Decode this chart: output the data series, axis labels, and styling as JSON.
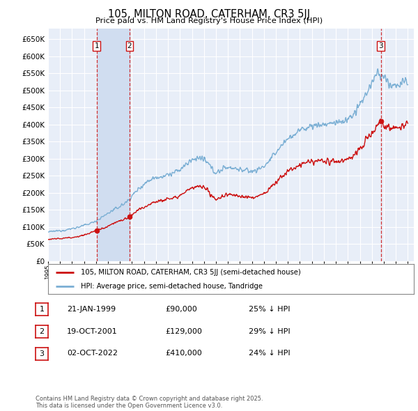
{
  "title": "105, MILTON ROAD, CATERHAM, CR3 5JJ",
  "subtitle": "Price paid vs. HM Land Registry's House Price Index (HPI)",
  "ylim": [
    0,
    680000
  ],
  "yticks": [
    0,
    50000,
    100000,
    150000,
    200000,
    250000,
    300000,
    350000,
    400000,
    450000,
    500000,
    550000,
    600000,
    650000
  ],
  "xlim": [
    1995,
    2025.5
  ],
  "background_color": "#ffffff",
  "plot_bg_color": "#e8eef8",
  "grid_color": "#ffffff",
  "hpi_color": "#7bafd4",
  "price_color": "#cc1111",
  "shade_color": "#d0ddf0",
  "transactions": [
    {
      "date": 1999.055,
      "price": 90000,
      "label": "1"
    },
    {
      "date": 2001.8,
      "price": 129000,
      "label": "2"
    },
    {
      "date": 2022.75,
      "price": 410000,
      "label": "3"
    }
  ],
  "legend_entries": [
    "105, MILTON ROAD, CATERHAM, CR3 5JJ (semi-detached house)",
    "HPI: Average price, semi-detached house, Tandridge"
  ],
  "table_rows": [
    {
      "num": "1",
      "date": "21-JAN-1999",
      "price": "£90,000",
      "note": "25% ↓ HPI"
    },
    {
      "num": "2",
      "date": "19-OCT-2001",
      "price": "£129,000",
      "note": "29% ↓ HPI"
    },
    {
      "num": "3",
      "date": "02-OCT-2022",
      "price": "£410,000",
      "note": "24% ↓ HPI"
    }
  ],
  "footnote": "Contains HM Land Registry data © Crown copyright and database right 2025.\nThis data is licensed under the Open Government Licence v3.0."
}
